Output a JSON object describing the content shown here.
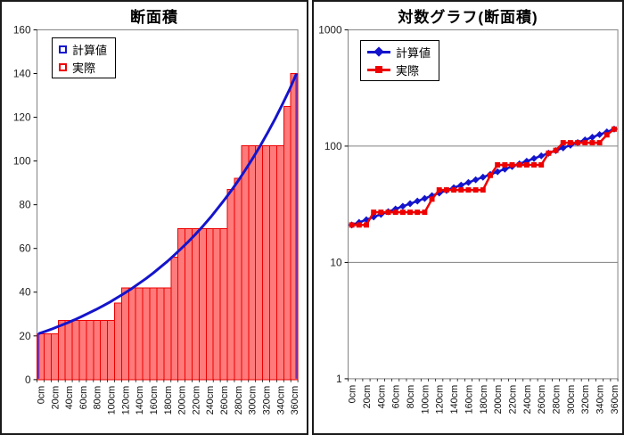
{
  "window": {
    "background": "#ffffff",
    "panel_border": "#1a1a1a"
  },
  "chart_data": [
    {
      "type": "bar",
      "title": "断面積",
      "x_unit": "cm",
      "x_categories_cm": [
        0,
        10,
        20,
        30,
        40,
        50,
        60,
        70,
        80,
        90,
        100,
        110,
        120,
        130,
        140,
        150,
        160,
        170,
        180,
        190,
        200,
        210,
        220,
        230,
        240,
        250,
        260,
        270,
        280,
        290,
        300,
        310,
        320,
        330,
        340,
        350,
        360
      ],
      "x_tick_labels": [
        "0cm",
        "20cm",
        "40cm",
        "60cm",
        "80cm",
        "100cm",
        "120cm",
        "140cm",
        "160cm",
        "180cm",
        "200cm",
        "220cm",
        "240cm",
        "260cm",
        "280cm",
        "300cm",
        "320cm",
        "340cm",
        "360cm"
      ],
      "x_label_interval": 2,
      "ylim": [
        0,
        160
      ],
      "yticks": [
        0,
        20,
        40,
        60,
        80,
        100,
        120,
        140,
        160
      ],
      "grid": false,
      "legend_position": "top-left",
      "plot_border_color": "#808080",
      "series": [
        {
          "name": "計算値",
          "type": "line",
          "color": "#1414cc",
          "marker": "square-outline",
          "line_width": 3,
          "values": [
            21,
            22.1,
            23.3,
            24.6,
            25.9,
            27.3,
            28.8,
            30.4,
            32,
            33.7,
            35.5,
            37.5,
            39.5,
            41.6,
            43.9,
            46.2,
            48.7,
            51.4,
            54.1,
            57.1,
            60.2,
            63.4,
            66.8,
            70.4,
            74.2,
            78.3,
            82.5,
            86.9,
            91.6,
            96.6,
            101.8,
            107.3,
            113.1,
            119.2,
            125.7,
            132.5,
            140
          ]
        },
        {
          "name": "実際",
          "type": "bar",
          "color": "#ee0000",
          "fill": "#ff7a7a",
          "values": [
            21,
            21,
            21,
            27,
            27,
            27,
            27,
            27,
            27,
            27,
            27,
            35,
            42,
            42,
            42,
            42,
            42,
            42,
            42,
            56,
            69,
            69,
            69,
            69,
            69,
            69,
            69,
            87,
            92,
            107,
            107,
            107,
            107,
            107,
            107,
            125,
            140
          ]
        }
      ]
    },
    {
      "type": "line",
      "title": "対数グラフ(断面積)",
      "y_scale": "log",
      "x_unit": "cm",
      "x_categories_cm": [
        0,
        10,
        20,
        30,
        40,
        50,
        60,
        70,
        80,
        90,
        100,
        110,
        120,
        130,
        140,
        150,
        160,
        170,
        180,
        190,
        200,
        210,
        220,
        230,
        240,
        250,
        260,
        270,
        280,
        290,
        300,
        310,
        320,
        330,
        340,
        350,
        360
      ],
      "x_tick_labels": [
        "0cm",
        "20cm",
        "40cm",
        "60cm",
        "80cm",
        "100cm",
        "120cm",
        "140cm",
        "160cm",
        "180cm",
        "200cm",
        "220cm",
        "240cm",
        "260cm",
        "280cm",
        "300cm",
        "320cm",
        "340cm",
        "360cm"
      ],
      "x_label_interval": 2,
      "ylim": [
        1,
        1000
      ],
      "yticks": [
        1,
        10,
        100,
        1000
      ],
      "grid": true,
      "legend_position": "top-left",
      "plot_border_color": "#808080",
      "series": [
        {
          "name": "計算値",
          "type": "line",
          "color": "#1414cc",
          "marker": "diamond",
          "line_width": 2.5,
          "values": [
            21,
            22.1,
            23.3,
            24.6,
            25.9,
            27.3,
            28.8,
            30.4,
            32,
            33.7,
            35.5,
            37.5,
            39.5,
            41.6,
            43.9,
            46.2,
            48.7,
            51.4,
            54.1,
            57.1,
            60.2,
            63.4,
            66.8,
            70.4,
            74.2,
            78.3,
            82.5,
            86.9,
            91.6,
            96.6,
            101.8,
            107.3,
            113.1,
            119.2,
            125.7,
            132.5,
            140
          ]
        },
        {
          "name": "実際",
          "type": "line",
          "color": "#ee0000",
          "marker": "square",
          "line_width": 2.5,
          "values": [
            21,
            21,
            21,
            27,
            27,
            27,
            27,
            27,
            27,
            27,
            27,
            35,
            42,
            42,
            42,
            42,
            42,
            42,
            42,
            56,
            69,
            69,
            69,
            69,
            69,
            69,
            69,
            87,
            92,
            107,
            107,
            107,
            107,
            107,
            107,
            125,
            140
          ]
        }
      ]
    }
  ]
}
